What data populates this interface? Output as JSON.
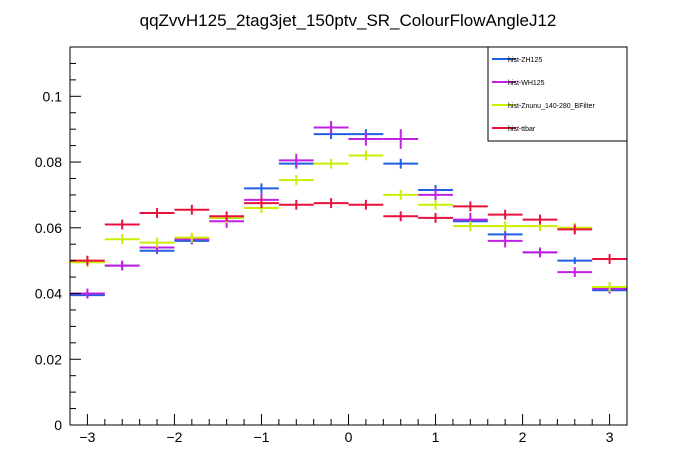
{
  "chart_data": {
    "type": "scatter",
    "title": "qqZvvH125_2tag3jet_150ptv_SR_ColourFlowAngleJ12",
    "xlabel": "",
    "ylabel": "",
    "xlim": [
      -3.2,
      3.2
    ],
    "ylim": [
      0,
      0.115
    ],
    "x_ticks": [
      -3,
      -2,
      -1,
      0,
      1,
      2,
      3
    ],
    "x_tick_labels": [
      "−3",
      "−2",
      "−1",
      "0",
      "1",
      "2",
      "3"
    ],
    "y_ticks": [
      0,
      0.02,
      0.04,
      0.06,
      0.08,
      0.1
    ],
    "y_tick_labels": [
      "0",
      "0.02",
      "0.04",
      "0.06",
      "0.08",
      "0.1"
    ],
    "legend_position": "top-right",
    "grid": false,
    "bin_edges": [
      -3.2,
      -2.8,
      -2.4,
      -2.0,
      -1.6,
      -1.2,
      -0.8,
      -0.4,
      0.0,
      0.4,
      0.8,
      1.2,
      1.6,
      2.0,
      2.4,
      2.8,
      3.2
    ],
    "series": [
      {
        "name": "hist-ZH125",
        "color": "#2060e0",
        "values": [
          0.0395,
          0.0485,
          0.053,
          0.056,
          0.063,
          0.072,
          0.0795,
          0.0885,
          0.0885,
          0.0795,
          0.0715,
          0.062,
          0.058,
          0.0525,
          0.05,
          0.041
        ],
        "errors": [
          0.001,
          0.001,
          0.001,
          0.001,
          0.001,
          0.0015,
          0.0015,
          0.0015,
          0.0015,
          0.0015,
          0.0015,
          0.001,
          0.001,
          0.001,
          0.001,
          0.001
        ]
      },
      {
        "name": "hist-WH125",
        "color": "#c020e0",
        "values": [
          0.04,
          0.0485,
          0.054,
          0.0565,
          0.062,
          0.0685,
          0.0805,
          0.0905,
          0.087,
          0.087,
          0.07,
          0.0625,
          0.056,
          0.0525,
          0.0465,
          0.0415
        ],
        "errors": [
          0.0015,
          0.0015,
          0.0015,
          0.0015,
          0.002,
          0.002,
          0.002,
          0.002,
          0.002,
          0.003,
          0.002,
          0.002,
          0.002,
          0.0015,
          0.0015,
          0.0015
        ]
      },
      {
        "name": "hist-Znunu_140-280_BFilter",
        "color": "#ccee00",
        "values": [
          0.0495,
          0.0565,
          0.0555,
          0.057,
          0.063,
          0.066,
          0.0745,
          0.0795,
          0.082,
          0.07,
          0.067,
          0.0605,
          0.0605,
          0.0605,
          0.06,
          0.042
        ],
        "errors": [
          0.0015,
          0.0015,
          0.0015,
          0.0015,
          0.0015,
          0.0015,
          0.0015,
          0.0015,
          0.0015,
          0.0015,
          0.0015,
          0.0015,
          0.0015,
          0.0015,
          0.0015,
          0.0015
        ]
      },
      {
        "name": "hist-ttbar",
        "color": "#e8103c",
        "values": [
          0.05,
          0.061,
          0.0645,
          0.0655,
          0.0635,
          0.0675,
          0.067,
          0.0675,
          0.067,
          0.0635,
          0.063,
          0.0665,
          0.064,
          0.0625,
          0.0595,
          0.0505
        ],
        "errors": [
          0.0015,
          0.0015,
          0.0015,
          0.0015,
          0.0015,
          0.0015,
          0.0015,
          0.0015,
          0.0015,
          0.0015,
          0.0015,
          0.0015,
          0.0015,
          0.0015,
          0.0015,
          0.0015
        ]
      }
    ]
  }
}
